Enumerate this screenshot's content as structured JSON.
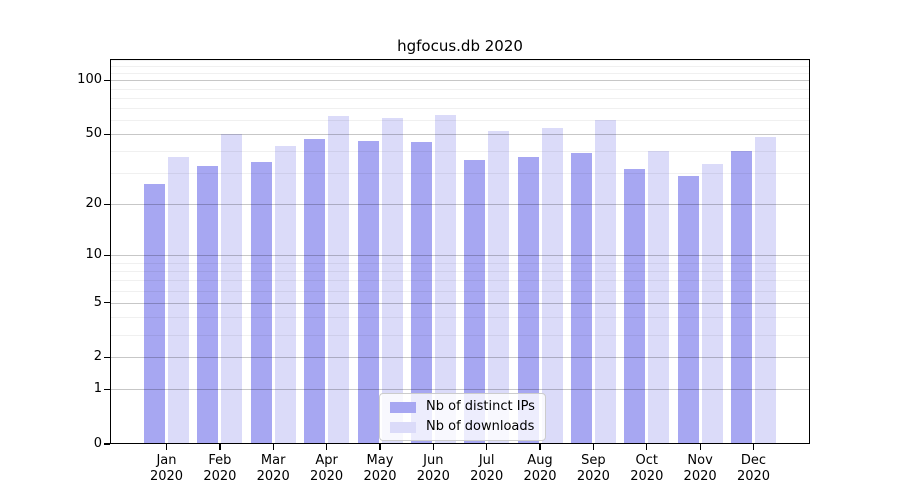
{
  "chart_data": {
    "type": "bar",
    "title": "hgfocus.db 2020",
    "scale": "log10(1+v)",
    "categories": [
      "Jan",
      "Feb",
      "Mar",
      "Apr",
      "May",
      "Jun",
      "Jul",
      "Aug",
      "Sep",
      "Oct",
      "Nov",
      "Dec"
    ],
    "year_label": "2020",
    "series": [
      {
        "name": "Nb of distinct IPs",
        "color": "#a7a7f2",
        "values": [
          26,
          33,
          35,
          47,
          46,
          45,
          36,
          37,
          39,
          32,
          29,
          40
        ]
      },
      {
        "name": "Nb of downloads",
        "color": "#dbdbf9",
        "values": [
          37,
          50,
          43,
          63,
          62,
          64,
          52,
          54,
          60,
          40,
          34,
          48
        ]
      }
    ],
    "y_ticks": [
      0,
      1,
      2,
      5,
      10,
      20,
      50,
      100
    ],
    "y_minor_ticks": [
      3,
      4,
      6,
      7,
      8,
      9,
      30,
      40,
      60,
      70,
      80,
      90,
      110,
      120,
      130
    ],
    "ylim": [
      0,
      131.5
    ],
    "xlabel": "",
    "ylabel": "",
    "grid": true,
    "legend_position": "lower center",
    "axis_color": "#000000",
    "major_grid_color": "#c9c9c9",
    "minor_grid_color": "#efefef"
  }
}
